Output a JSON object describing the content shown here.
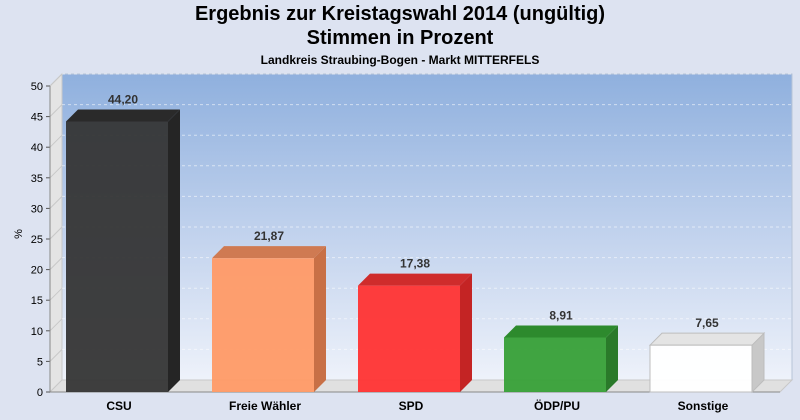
{
  "chart_data": {
    "type": "bar",
    "title": "Ergebnis zur Kreistagswahl 2014 (ungültig)",
    "title2": "Stimmen in Prozent",
    "subtitle": "Landkreis Straubing-Bogen - Markt MITTERFELS",
    "ylabel": "%",
    "ylim": [
      0,
      50
    ],
    "yticks": [
      "0",
      "5",
      "10",
      "15",
      "20",
      "25",
      "30",
      "35",
      "40",
      "45",
      "50"
    ],
    "grid": true,
    "categories": [
      "CSU",
      "Freie Wähler",
      "SPD",
      "ÖDP/PU",
      "Sonstige"
    ],
    "values": [
      44.2,
      21.87,
      17.38,
      8.91,
      7.65
    ],
    "value_labels": [
      "44,20",
      "21,87",
      "17,38",
      "8,91",
      "7,65"
    ],
    "colors": [
      "#353535",
      "#ff9a66",
      "#ff3333",
      "#37a037",
      "#ffffff"
    ],
    "side_colors": [
      "#252525",
      "#c87046",
      "#c42424",
      "#2a7a2a",
      "#c8c8c8"
    ],
    "top_colors": [
      "#2a2a2a",
      "#cf7a52",
      "#cf2c2c",
      "#2d8a2d",
      "#e4e4e4"
    ]
  }
}
